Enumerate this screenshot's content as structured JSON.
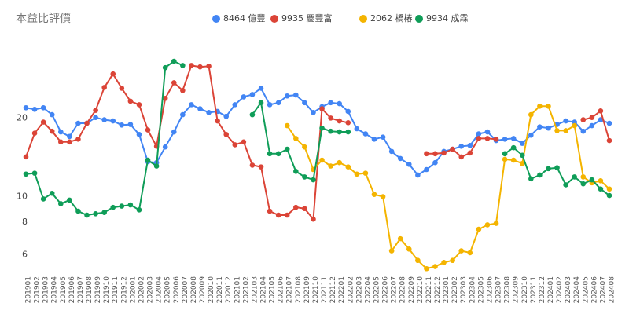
{
  "chart_data": {
    "type": "line",
    "title": "本益比評價",
    "categories": [
      "201901",
      "201902",
      "201903",
      "201904",
      "201905",
      "201906",
      "201907",
      "201908",
      "201909",
      "201910",
      "201911",
      "201912",
      "202001",
      "202002",
      "202003",
      "202004",
      "202005",
      "202006",
      "202007",
      "202008",
      "202009",
      "202010",
      "202011",
      "202012",
      "202101",
      "202102",
      "202103",
      "202104",
      "202105",
      "202106",
      "202107",
      "202108",
      "202109",
      "202110",
      "202111",
      "202112",
      "202201",
      "202202",
      "202203",
      "202204",
      "202205",
      "202206",
      "202207",
      "202208",
      "202209",
      "202210",
      "202211",
      "202212",
      "202301",
      "202302",
      "202303",
      "202304",
      "202305",
      "202306",
      "202307",
      "202308",
      "202309",
      "202310",
      "202311",
      "202312",
      "202401",
      "202402",
      "202403",
      "202404",
      "202405",
      "202406",
      "202407",
      "202408"
    ],
    "series": [
      {
        "name": "8464 億豐",
        "color": "#4285f4",
        "values": [
          21.9,
          21.6,
          21.9,
          20.6,
          17.7,
          17.0,
          19.1,
          19.1,
          20.1,
          19.7,
          19.5,
          18.8,
          18.9,
          17.3,
          13.6,
          13.5,
          15.5,
          17.7,
          20.6,
          22.5,
          21.7,
          21.0,
          21.2,
          20.3,
          22.5,
          24.1,
          24.6,
          26.0,
          22.5,
          22.9,
          24.3,
          24.5,
          22.9,
          21.0,
          22.1,
          22.9,
          22.7,
          21.2,
          18.2,
          17.4,
          16.6,
          16.9,
          14.9,
          14.0,
          13.3,
          12.1,
          12.7,
          13.5,
          14.9,
          15.2,
          15.6,
          15.7,
          17.4,
          17.7,
          16.4,
          16.6,
          16.7,
          16.0,
          17.2,
          18.5,
          18.3,
          18.9,
          19.5,
          19.3,
          17.8,
          18.7,
          19.7,
          19.1
        ]
      },
      {
        "name": "9935 慶豐富",
        "color": "#db4437",
        "values": [
          14.2,
          17.5,
          19.3,
          17.8,
          16.2,
          16.2,
          16.6,
          19.1,
          21.4,
          26.2,
          29.5,
          26.0,
          23.2,
          22.5,
          18.0,
          15.6,
          23.8,
          27.3,
          25.5,
          31.8,
          31.4,
          31.6,
          19.5,
          17.3,
          15.8,
          16.2,
          13.2,
          13.0,
          8.8,
          8.5,
          8.5,
          9.1,
          9.0,
          8.2,
          21.7,
          20.0,
          19.5,
          19.2,
          null,
          null,
          null,
          null,
          null,
          null,
          null,
          null,
          14.6,
          14.6,
          14.7,
          15.2,
          14.2,
          14.7,
          16.7,
          16.7,
          16.6,
          null,
          null,
          null,
          null,
          null,
          null,
          null,
          null,
          null,
          19.7,
          20.1,
          21.3,
          16.4
        ]
      },
      {
        "name": "2062 橋椿",
        "color": "#f4b400",
        "values": [
          null,
          null,
          null,
          null,
          null,
          null,
          null,
          null,
          null,
          null,
          null,
          null,
          null,
          null,
          null,
          null,
          null,
          null,
          null,
          null,
          null,
          null,
          null,
          null,
          null,
          null,
          null,
          null,
          null,
          null,
          18.7,
          16.7,
          15.5,
          12.7,
          13.8,
          13.1,
          13.5,
          13.0,
          12.2,
          12.3,
          10.2,
          10.0,
          6.2,
          6.9,
          6.3,
          5.7,
          5.3,
          5.4,
          5.6,
          5.7,
          6.2,
          6.1,
          7.5,
          7.8,
          7.9,
          13.9,
          13.8,
          13.4,
          20.6,
          22.2,
          22.2,
          17.9,
          17.9,
          18.7,
          11.9,
          11.3,
          11.5,
          10.7
        ]
      },
      {
        "name": "9934 成霖",
        "color": "#0f9d58",
        "values": [
          12.2,
          12.3,
          9.8,
          10.3,
          9.4,
          9.7,
          8.8,
          8.5,
          8.6,
          8.7,
          9.1,
          9.2,
          9.3,
          8.9,
          13.8,
          13.1,
          31.2,
          33.0,
          31.8,
          null,
          null,
          null,
          null,
          null,
          null,
          null,
          20.6,
          22.9,
          14.6,
          14.6,
          15.2,
          12.5,
          11.9,
          11.6,
          18.3,
          17.8,
          17.7,
          17.7,
          null,
          null,
          null,
          null,
          null,
          null,
          null,
          null,
          null,
          null,
          null,
          null,
          null,
          null,
          null,
          null,
          null,
          14.6,
          15.4,
          14.4,
          11.7,
          12.1,
          12.8,
          12.9,
          11.1,
          11.9,
          11.2,
          11.6,
          10.7,
          10.1
        ]
      }
    ],
    "ylim": [
      5.2,
      33.7
    ],
    "yticks": [
      6,
      8,
      10,
      20
    ],
    "log": true,
    "grid": false,
    "legend": "top"
  }
}
